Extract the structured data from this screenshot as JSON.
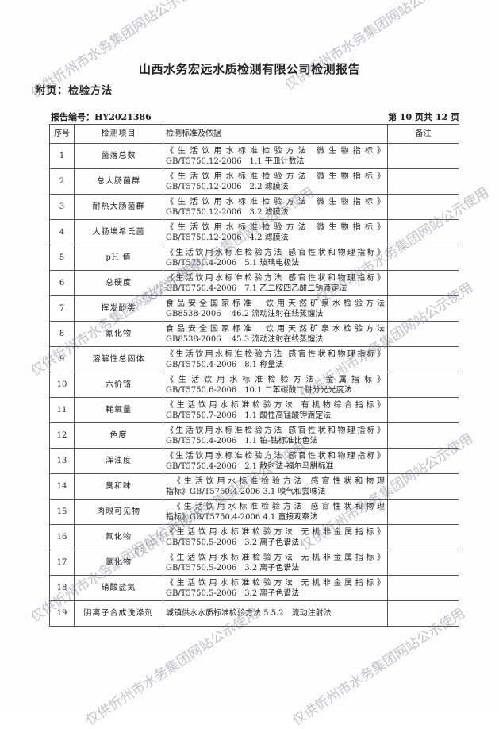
{
  "header": {
    "title": "山西水务宏远水质检测有限公司检测报告",
    "subtitle": "附页：检验方法",
    "report_no": "报告编号：HY2021386",
    "page_info": "第 10 页共 12 页"
  },
  "watermark": "仅供忻州市水务集团网站公示使用",
  "table": {
    "headers": [
      "序号",
      "检测项目",
      "检测标准及依据",
      "备注"
    ],
    "rows": [
      {
        "no": "1",
        "item": "菌落总数",
        "l1": "《生活饮用水标准检验方法 微生物指标》",
        "l2": "GB/T5750.12-2006　1.1 平皿计数法",
        "note": ""
      },
      {
        "no": "2",
        "item": "总大肠菌群",
        "l1": "《生活饮用水标准检验方法 微生物指标》",
        "l2": "GB/T5750.12-2006　2.2 滤膜法",
        "note": ""
      },
      {
        "no": "3",
        "item": "耐热大肠菌群",
        "l1": "《生活饮用水标准检验方法 微生物指标》",
        "l2": "GB/T5750.12-2006　3.2 滤膜法",
        "note": ""
      },
      {
        "no": "4",
        "item": "大肠埃希氏菌",
        "l1": "《生活饮用水标准检验方法 微生物指标》",
        "l2": "GB/T5750.12-2006　4.2 滤膜法",
        "note": ""
      },
      {
        "no": "5",
        "item": "pH 值",
        "l1": "《生活饮用水标准检验方法 感官性状和物理指标》",
        "l2": "GB/T5750.4-2006　5.1 玻璃电极法",
        "note": ""
      },
      {
        "no": "6",
        "item": "总硬度",
        "l1": "《生活饮用水标准检验方法 感官性状和物理指标》",
        "l2": "GB/T5750.4-2006　7.1 乙二胺四乙酸二钠滴定法",
        "note": ""
      },
      {
        "no": "7",
        "item": "挥发酚类",
        "l1": "食品安全国家标准　饮用天然矿泉水检验方法",
        "l2": "GB8538-2006　 46.2 流动注射在线蒸馏法",
        "note": ""
      },
      {
        "no": "8",
        "item": "氰化物",
        "l1": "食品安全国家标准　饮用天然矿泉水检验方法",
        "l2": "GB8538-2006　 45.3 流动注射在线蒸馏法",
        "note": ""
      },
      {
        "no": "9",
        "item": "溶解性总固体",
        "l1": "《生活饮用水标准检验方法 感官性状和物理指标》",
        "l2": "GB/T5750.4-2006　8.1 称量法",
        "note": ""
      },
      {
        "no": "10",
        "item": "六价铬",
        "l1": "《生活饮用水标准检验方法 金属指标》",
        "l2": "GB/T5750.6-2006　10.1 二苯碳酰二肼分光光度法",
        "note": ""
      },
      {
        "no": "11",
        "item": "耗氧量",
        "l1": "《生活饮用水标准检验方法 有机物综合指标》",
        "l2": "GB/T5750.7-2006　1.1 酸性高锰酸钾滴定法",
        "note": ""
      },
      {
        "no": "12",
        "item": "色度",
        "l1": "《生活饮用水标准检验方法 感官性状和物理指标》",
        "l2": "GB/T5750.4-2006　1.1 铂-钴标准比色法",
        "note": ""
      },
      {
        "no": "13",
        "item": "浑浊度",
        "l1": "《生活饮用水标准检验方法 感官性状和物理指标》",
        "l2": "GB/T5750.4-2006　2.1 散射法-福尔马肼标准",
        "note": ""
      },
      {
        "no": "14",
        "item": "臭和味",
        "l1": "　《生活饮用水标准检验方法 感官性状和物理",
        "l2": "指标》GB/T5750.4-2006 3.1 嗅气和尝味法",
        "note": ""
      },
      {
        "no": "15",
        "item": "肉眼可见物",
        "l1": "　《生活饮用水标准检验方法 感官性状和物理",
        "l2": "指标》GB/T5750.4-2006 4.1 直接观察法",
        "note": ""
      },
      {
        "no": "16",
        "item": "氟化物",
        "l1": "《生活饮用水标准检验方法 无机非金属指标》",
        "l2": "GB/T5750.5-2006　3.2 离子色谱法",
        "note": ""
      },
      {
        "no": "17",
        "item": "氯化物",
        "l1": "《生活饮用水标准检验方法 无机非金属指标》",
        "l2": "GB/T5750.5-2006　3.2 离子色谱法",
        "note": ""
      },
      {
        "no": "18",
        "item": "硝酸盐氮",
        "l1": "《生活饮用水标准检验方法 无机非金属指标》",
        "l2": "GB/T5750.5-2006　3.2 离子色谱法",
        "note": ""
      },
      {
        "no": "19",
        "item": "阴离子合成洗涤剂",
        "l1": "城镇供水水质标准检验方法 5.5.2　流动注射法",
        "l2": "",
        "note": ""
      }
    ]
  }
}
